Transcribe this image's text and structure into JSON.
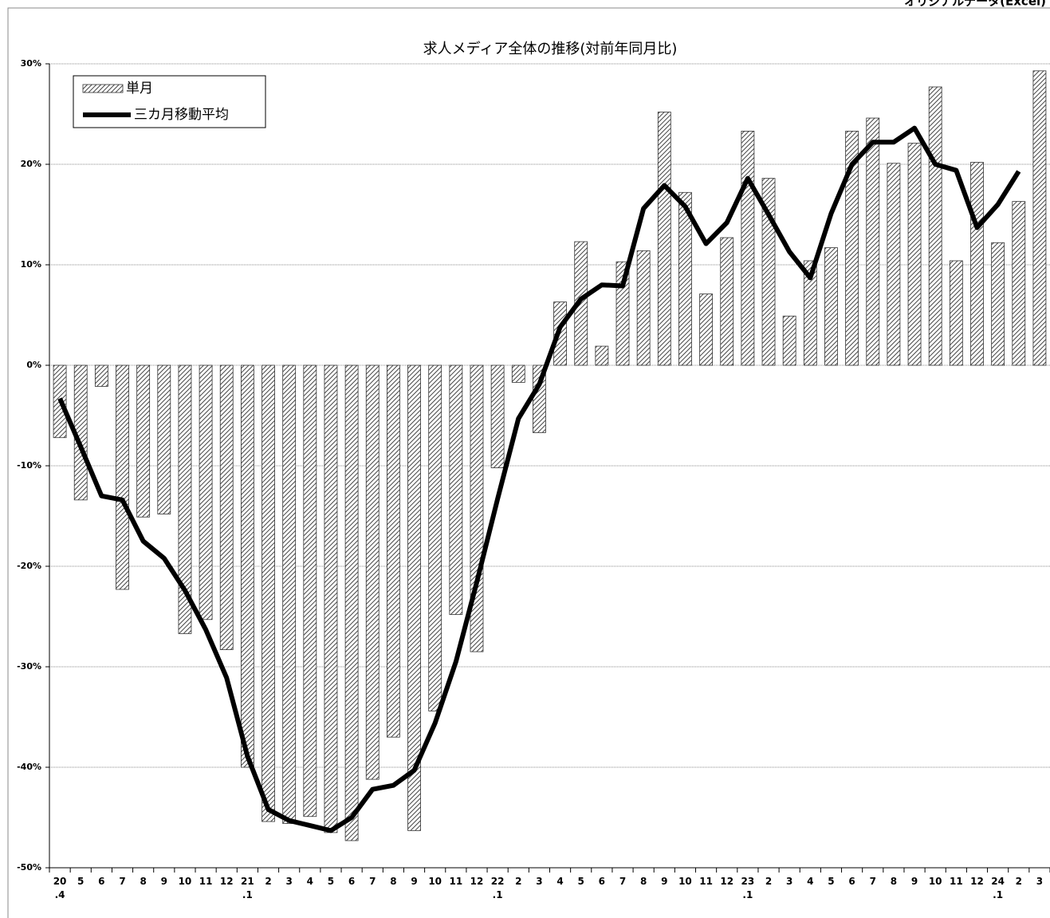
{
  "note_top": "オリジナルデータ(Excel)",
  "chart_data": {
    "type": "bar_line",
    "title": "求人メディア全体の推移(対前年同月比)",
    "categories": [
      "20\n.4",
      "5",
      "6",
      "7",
      "8",
      "9",
      "10",
      "11",
      "12",
      "21\n.1",
      "2",
      "3",
      "4",
      "5",
      "6",
      "7",
      "8",
      "9",
      "10",
      "11",
      "12",
      "22\n.1",
      "2",
      "3",
      "4",
      "5",
      "6",
      "7",
      "8",
      "9",
      "10",
      "11",
      "12",
      "23\n.1",
      "2",
      "3",
      "4",
      "5",
      "6",
      "7",
      "8",
      "9",
      "10",
      "11",
      "12",
      "24\n.1",
      "2",
      "3"
    ],
    "series": [
      {
        "name": "単月",
        "type": "bar",
        "color": "#444444",
        "values": [
          -7.2,
          -13.4,
          -2.1,
          -22.3,
          -15.1,
          -14.8,
          -26.7,
          -25.3,
          -28.3,
          -40.0,
          -45.4,
          -45.6,
          -44.9,
          -46.5,
          -47.3,
          -41.2,
          -37.0,
          -46.3,
          -34.4,
          -24.8,
          -28.5,
          -10.2,
          -1.7,
          -6.7,
          6.3,
          12.3,
          1.9,
          10.3,
          11.4,
          25.2,
          17.2,
          7.1,
          12.7,
          23.3,
          18.6,
          4.9,
          10.4,
          11.7,
          23.3,
          24.6,
          20.1,
          22.1,
          27.7,
          10.4,
          20.2,
          12.2,
          16.3,
          29.3
        ]
      },
      {
        "name": "三カ月移動平均",
        "type": "line",
        "color": "#000000",
        "values": [
          -3.3,
          -8.1,
          -13.0,
          -13.4,
          -17.5,
          -19.2,
          -22.4,
          -26.3,
          -31.1,
          -38.9,
          -44.2,
          -45.3,
          -45.8,
          -46.3,
          -45.0,
          -42.2,
          -41.8,
          -40.3,
          -35.6,
          -29.5,
          -21.6,
          -13.3,
          -5.3,
          -1.9,
          3.8,
          6.6,
          8.0,
          7.9,
          15.6,
          17.9,
          15.8,
          12.1,
          14.2,
          18.6,
          15.0,
          11.3,
          8.7,
          15.1,
          20.0,
          22.2,
          22.2,
          23.6,
          20.0,
          19.4,
          13.7,
          16.0,
          19.3,
          null
        ]
      }
    ],
    "ylim": [
      -50,
      30
    ],
    "yticks": [
      {
        "value": -50,
        "label": "-50%"
      },
      {
        "value": -40,
        "label": "-40%"
      },
      {
        "value": -30,
        "label": "-30%"
      },
      {
        "value": -20,
        "label": "-20%"
      },
      {
        "value": -10,
        "label": "-10%"
      },
      {
        "value": 0,
        "label": "0%"
      },
      {
        "value": 10,
        "label": "10%"
      },
      {
        "value": 20,
        "label": "20%"
      },
      {
        "value": 30,
        "label": "30%"
      }
    ],
    "grid": true,
    "legend": "top-left"
  }
}
